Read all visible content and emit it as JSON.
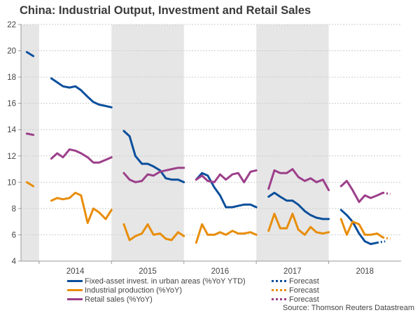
{
  "chart_data": {
    "type": "line",
    "title": "China: Industrial Output, Investment and Retail Sales",
    "xlabel": "",
    "ylabel": "",
    "ylim": [
      4,
      22
    ],
    "yticks": [
      4,
      6,
      8,
      10,
      12,
      14,
      16,
      18,
      20,
      22
    ],
    "grid": true,
    "x_period_start": 2013.75,
    "x_period_end": 2019.0,
    "year_labels": [
      "2014",
      "2015",
      "2016",
      "2017",
      "2018"
    ],
    "year_label_positions": [
      2014.5,
      2015.5,
      2016.5,
      2017.5,
      2018.5
    ],
    "shaded_periods": [
      [
        2013.75,
        2014.0
      ],
      [
        2015.0,
        2016.0
      ],
      [
        2017.0,
        2018.0
      ]
    ],
    "series": [
      {
        "name": "Fixed-asset invest. in urban areas (%YoY YTD)",
        "color": "#0b4f9c",
        "segments": [
          [
            [
              2013.83,
              19.9
            ],
            [
              2013.92,
              19.6
            ]
          ],
          [
            [
              2014.17,
              17.9
            ],
            [
              2014.25,
              17.6
            ],
            [
              2014.33,
              17.3
            ],
            [
              2014.42,
              17.2
            ],
            [
              2014.5,
              17.3
            ],
            [
              2014.58,
              17.0
            ],
            [
              2014.67,
              16.5
            ],
            [
              2014.75,
              16.1
            ],
            [
              2014.83,
              15.9
            ],
            [
              2014.92,
              15.8
            ],
            [
              2015.0,
              15.7
            ]
          ],
          [
            [
              2015.17,
              13.9
            ],
            [
              2015.25,
              13.5
            ],
            [
              2015.33,
              12.0
            ],
            [
              2015.42,
              11.4
            ],
            [
              2015.5,
              11.4
            ],
            [
              2015.58,
              11.2
            ],
            [
              2015.67,
              10.9
            ],
            [
              2015.75,
              10.3
            ],
            [
              2015.83,
              10.2
            ],
            [
              2015.92,
              10.2
            ],
            [
              2016.0,
              10.0
            ]
          ],
          [
            [
              2016.17,
              10.2
            ],
            [
              2016.25,
              10.7
            ],
            [
              2016.33,
              10.5
            ],
            [
              2016.42,
              9.6
            ],
            [
              2016.5,
              9.0
            ],
            [
              2016.58,
              8.1
            ],
            [
              2016.67,
              8.1
            ],
            [
              2016.75,
              8.2
            ],
            [
              2016.83,
              8.3
            ],
            [
              2016.92,
              8.3
            ],
            [
              2017.0,
              8.1
            ]
          ],
          [
            [
              2017.17,
              8.9
            ],
            [
              2017.25,
              9.2
            ],
            [
              2017.33,
              8.9
            ],
            [
              2017.42,
              8.6
            ],
            [
              2017.5,
              8.6
            ],
            [
              2017.58,
              8.3
            ],
            [
              2017.67,
              7.8
            ],
            [
              2017.75,
              7.5
            ],
            [
              2017.83,
              7.3
            ],
            [
              2017.92,
              7.2
            ],
            [
              2018.0,
              7.2
            ]
          ],
          [
            [
              2018.17,
              7.9
            ],
            [
              2018.25,
              7.5
            ],
            [
              2018.33,
              7.0
            ],
            [
              2018.42,
              6.1
            ],
            [
              2018.5,
              5.5
            ],
            [
              2018.58,
              5.3
            ],
            [
              2018.67,
              5.4
            ]
          ]
        ],
        "forecast": [
          [
            2018.67,
            5.4
          ],
          [
            2018.78,
            5.5
          ]
        ]
      },
      {
        "name": "Industrial production (%YoY)",
        "color": "#e88d0a",
        "segments": [
          [
            [
              2013.83,
              10.0
            ],
            [
              2013.92,
              9.7
            ]
          ],
          [
            [
              2014.17,
              8.6
            ],
            [
              2014.25,
              8.8
            ],
            [
              2014.33,
              8.7
            ],
            [
              2014.42,
              8.8
            ],
            [
              2014.5,
              9.2
            ],
            [
              2014.58,
              9.0
            ],
            [
              2014.67,
              6.9
            ],
            [
              2014.75,
              8.0
            ],
            [
              2014.83,
              7.7
            ],
            [
              2014.92,
              7.2
            ],
            [
              2015.0,
              7.9
            ]
          ],
          [
            [
              2015.17,
              6.8
            ],
            [
              2015.25,
              5.6
            ],
            [
              2015.33,
              5.9
            ],
            [
              2015.42,
              6.1
            ],
            [
              2015.5,
              6.8
            ],
            [
              2015.58,
              6.0
            ],
            [
              2015.67,
              6.1
            ],
            [
              2015.75,
              5.7
            ],
            [
              2015.83,
              5.6
            ],
            [
              2015.92,
              6.2
            ],
            [
              2016.0,
              5.9
            ]
          ],
          [
            [
              2016.17,
              5.4
            ],
            [
              2016.25,
              6.8
            ],
            [
              2016.33,
              6.0
            ],
            [
              2016.42,
              6.0
            ],
            [
              2016.5,
              6.2
            ],
            [
              2016.58,
              6.0
            ],
            [
              2016.67,
              6.3
            ],
            [
              2016.75,
              6.1
            ],
            [
              2016.83,
              6.1
            ],
            [
              2016.92,
              6.2
            ],
            [
              2017.0,
              6.0
            ]
          ],
          [
            [
              2017.17,
              6.3
            ],
            [
              2017.25,
              7.6
            ],
            [
              2017.33,
              6.5
            ],
            [
              2017.42,
              6.5
            ],
            [
              2017.5,
              7.6
            ],
            [
              2017.58,
              6.4
            ],
            [
              2017.67,
              6.0
            ],
            [
              2017.75,
              6.6
            ],
            [
              2017.83,
              6.2
            ],
            [
              2017.92,
              6.1
            ],
            [
              2018.0,
              6.2
            ]
          ],
          [
            [
              2018.17,
              7.2
            ],
            [
              2018.25,
              6.0
            ],
            [
              2018.33,
              7.0
            ],
            [
              2018.42,
              6.8
            ],
            [
              2018.5,
              6.0
            ],
            [
              2018.58,
              6.0
            ],
            [
              2018.67,
              6.1
            ],
            [
              2018.75,
              5.8
            ]
          ],
          []
        ],
        "forecast": [
          [
            2018.75,
            5.8
          ],
          [
            2018.85,
            5.7
          ]
        ]
      },
      {
        "name": "Retail sales (%YoY)",
        "color": "#9c3f8a",
        "segments": [
          [
            [
              2013.83,
              13.7
            ],
            [
              2013.92,
              13.6
            ]
          ],
          [
            [
              2014.17,
              11.8
            ],
            [
              2014.25,
              12.2
            ],
            [
              2014.33,
              11.9
            ],
            [
              2014.42,
              12.5
            ],
            [
              2014.5,
              12.4
            ],
            [
              2014.58,
              12.2
            ],
            [
              2014.67,
              11.9
            ],
            [
              2014.75,
              11.5
            ],
            [
              2014.83,
              11.5
            ],
            [
              2014.92,
              11.7
            ],
            [
              2015.0,
              11.9
            ]
          ],
          [
            [
              2015.17,
              10.7
            ],
            [
              2015.25,
              10.2
            ],
            [
              2015.33,
              10.0
            ],
            [
              2015.42,
              10.1
            ],
            [
              2015.5,
              10.6
            ],
            [
              2015.58,
              10.5
            ],
            [
              2015.67,
              10.8
            ],
            [
              2015.75,
              10.9
            ],
            [
              2015.83,
              11.0
            ],
            [
              2015.92,
              11.1
            ],
            [
              2016.0,
              11.1
            ]
          ],
          [
            [
              2016.17,
              10.2
            ],
            [
              2016.25,
              10.5
            ],
            [
              2016.33,
              10.1
            ],
            [
              2016.42,
              10.0
            ],
            [
              2016.5,
              10.6
            ],
            [
              2016.58,
              10.2
            ],
            [
              2016.67,
              10.6
            ],
            [
              2016.75,
              10.7
            ],
            [
              2016.83,
              10.0
            ],
            [
              2016.92,
              10.8
            ],
            [
              2017.0,
              10.9
            ]
          ],
          [
            [
              2017.17,
              9.5
            ],
            [
              2017.25,
              10.9
            ],
            [
              2017.33,
              10.7
            ],
            [
              2017.42,
              10.7
            ],
            [
              2017.5,
              11.0
            ],
            [
              2017.58,
              10.4
            ],
            [
              2017.67,
              10.1
            ],
            [
              2017.75,
              10.3
            ],
            [
              2017.83,
              10.0
            ],
            [
              2017.92,
              10.2
            ],
            [
              2018.0,
              9.4
            ]
          ],
          [
            [
              2018.17,
              9.7
            ],
            [
              2018.25,
              10.1
            ],
            [
              2018.33,
              9.4
            ],
            [
              2018.42,
              8.5
            ],
            [
              2018.5,
              9.0
            ],
            [
              2018.58,
              8.8
            ],
            [
              2018.67,
              9.0
            ],
            [
              2018.75,
              9.2
            ]
          ]
        ],
        "forecast": [
          [
            2018.75,
            9.2
          ],
          [
            2018.85,
            9.1
          ]
        ]
      }
    ],
    "legend": {
      "placement": "bottom",
      "entries": [
        {
          "label": "Fixed-asset invest. in urban areas (%YoY YTD)",
          "color": "#0b4f9c",
          "style": "solid"
        },
        {
          "label": "Industrial production (%YoY)",
          "color": "#e88d0a",
          "style": "solid"
        },
        {
          "label": "Retail sales (%YoY)",
          "color": "#9c3f8a",
          "style": "solid"
        },
        {
          "label": "Forecast",
          "color": "#0b4f9c",
          "style": "dotted"
        },
        {
          "label": "Forecast",
          "color": "#e88d0a",
          "style": "dotted"
        },
        {
          "label": "Forecast",
          "color": "#9c3f8a",
          "style": "dotted"
        }
      ]
    },
    "source": "Source: Thomson Reuters Datastream"
  }
}
